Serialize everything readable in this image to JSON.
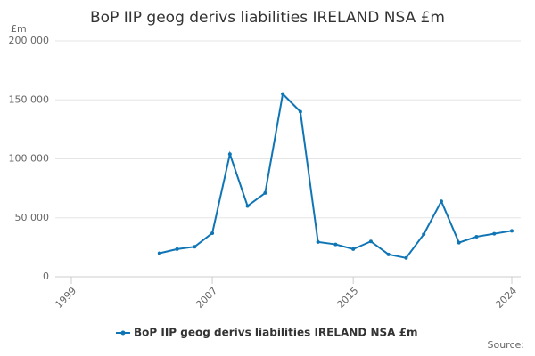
{
  "chart_data": {
    "type": "line",
    "title": "BoP IIP geog derivs liabilities IRELAND NSA £m",
    "y_unit": "£m",
    "source": "Source:",
    "x": [
      2004,
      2005,
      2006,
      2007,
      2008,
      2009,
      2010,
      2011,
      2012,
      2013,
      2014,
      2015,
      2016,
      2017,
      2018,
      2019,
      2020,
      2021,
      2022,
      2023,
      2024
    ],
    "series": [
      {
        "name": "BoP IIP geog derivs liabilities IRELAND NSA £m",
        "color": "#0f75b5",
        "values": [
          20000,
          23500,
          25500,
          37000,
          104000,
          60000,
          71000,
          155000,
          140000,
          29500,
          27500,
          23500,
          30000,
          19000,
          16000,
          36000,
          64000,
          29000,
          34000,
          36500,
          39000
        ]
      }
    ],
    "xlim": [
      1999,
      2024
    ],
    "xticks": [
      1999,
      2007,
      2015,
      2024
    ],
    "ylim": [
      0,
      200000
    ],
    "yticks": [
      0,
      {
        "value": 50000,
        "label": "50 000"
      },
      {
        "value": 100000,
        "label": "100 000"
      },
      {
        "value": 150000,
        "label": "150 000"
      },
      {
        "value": 200000,
        "label": "200 000"
      }
    ],
    "grid": true
  }
}
